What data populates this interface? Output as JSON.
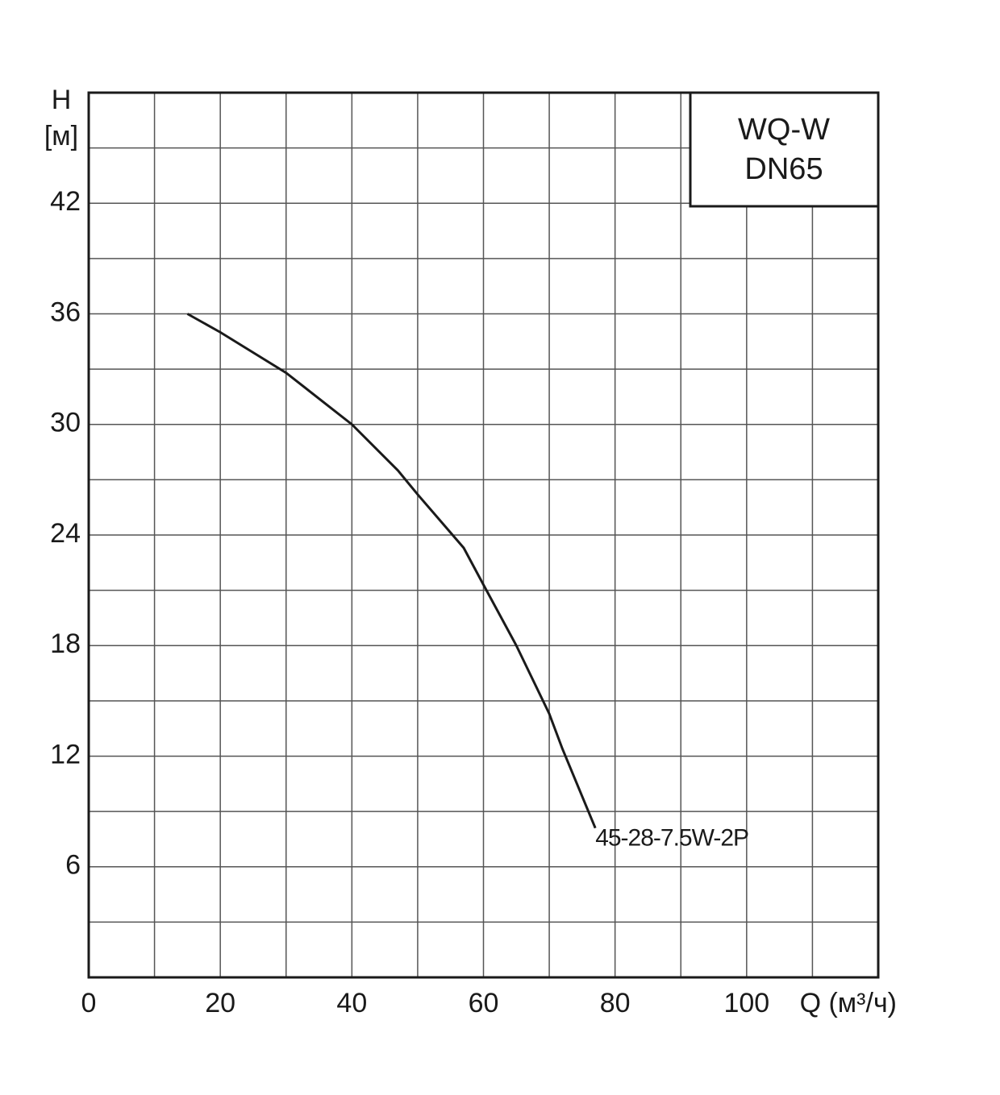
{
  "chart_data": {
    "type": "line",
    "title_box": [
      "WQ-W",
      "DN65"
    ],
    "ylabel": [
      "H",
      "[м]"
    ],
    "xlabel": "Q (м³/ч)",
    "x": [
      15,
      20,
      30,
      40,
      47,
      50,
      57,
      60,
      65,
      70,
      72,
      77
    ],
    "series": [
      {
        "name": "45-28-7.5W-2P",
        "color": "#1a1a1a",
        "values": [
          36,
          35,
          32.8,
          30,
          27.5,
          26.2,
          23.3,
          21.3,
          18,
          14.3,
          12.4,
          8.1
        ]
      }
    ],
    "xlim": [
      0,
      120
    ],
    "ylim": [
      0,
      48
    ],
    "xticks": [
      0,
      20,
      40,
      60,
      80,
      100
    ],
    "yticks": [
      6,
      12,
      18,
      24,
      30,
      36,
      42
    ],
    "xgrid": [
      10,
      20,
      30,
      40,
      50,
      60,
      70,
      80,
      90,
      100,
      110
    ],
    "ygrid": [
      3,
      6,
      9,
      12,
      15,
      18,
      21,
      24,
      27,
      30,
      33,
      36,
      39,
      42,
      45
    ],
    "grid": true
  }
}
